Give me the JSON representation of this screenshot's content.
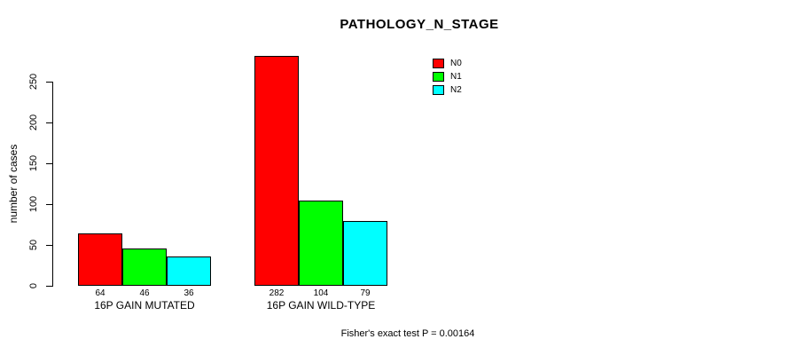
{
  "title": "PATHOLOGY_N_STAGE",
  "footer": "Fisher's exact test P = 0.00164",
  "chart_data": {
    "type": "bar",
    "title": "PATHOLOGY_N_STAGE",
    "xlabel": "",
    "ylabel": "number of cases",
    "categories": [
      "16P GAIN MUTATED",
      "16P GAIN WILD-TYPE"
    ],
    "series": [
      {
        "name": "N0",
        "color": "#ff0000",
        "values": [
          64,
          282
        ]
      },
      {
        "name": "N1",
        "color": "#00ff00",
        "values": [
          46,
          104
        ]
      },
      {
        "name": "N2",
        "color": "#00ffff",
        "values": [
          36,
          79
        ]
      }
    ],
    "yticks": [
      0,
      50,
      100,
      150,
      200,
      250
    ],
    "ylim": [
      0,
      250
    ],
    "grid": false,
    "legend_position": "top-right",
    "show_values_below_bars": true,
    "annotation": "Fisher's exact test P = 0.00164"
  }
}
